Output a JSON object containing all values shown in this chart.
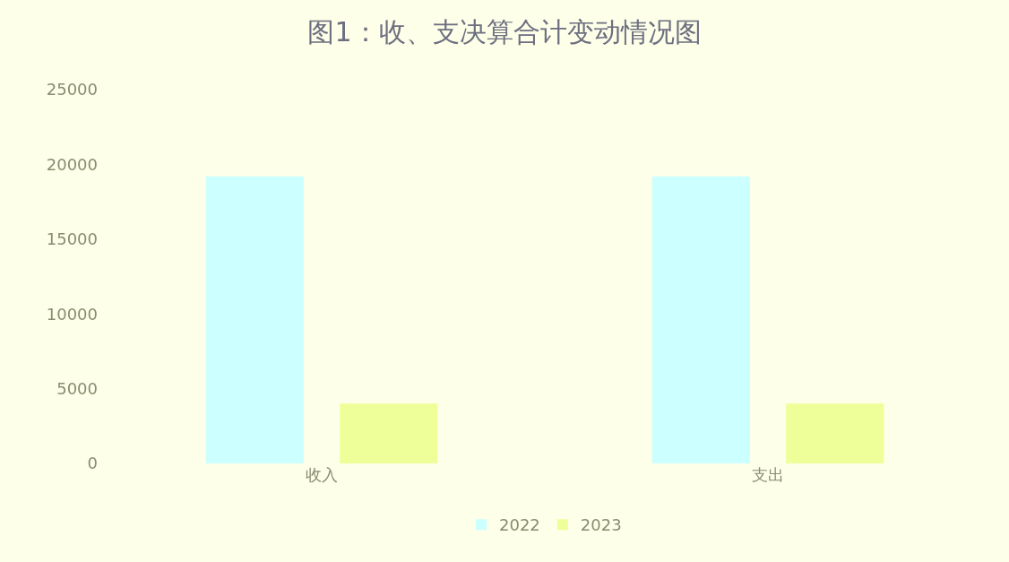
{
  "chart_data": {
    "type": "bar",
    "title": "图1：收、支决算合计变动情况图",
    "categories": [
      "收入",
      "支出"
    ],
    "series": [
      {
        "name": "2022",
        "color": "#ccffff",
        "values": [
          19200,
          19200
        ]
      },
      {
        "name": "2023",
        "color": "#eeff99",
        "values": [
          4000,
          4000
        ]
      }
    ],
    "ylim": [
      0,
      25000
    ],
    "yticks": [
      0,
      5000,
      10000,
      15000,
      20000,
      25000
    ],
    "grid": false,
    "legend": "bottom"
  }
}
